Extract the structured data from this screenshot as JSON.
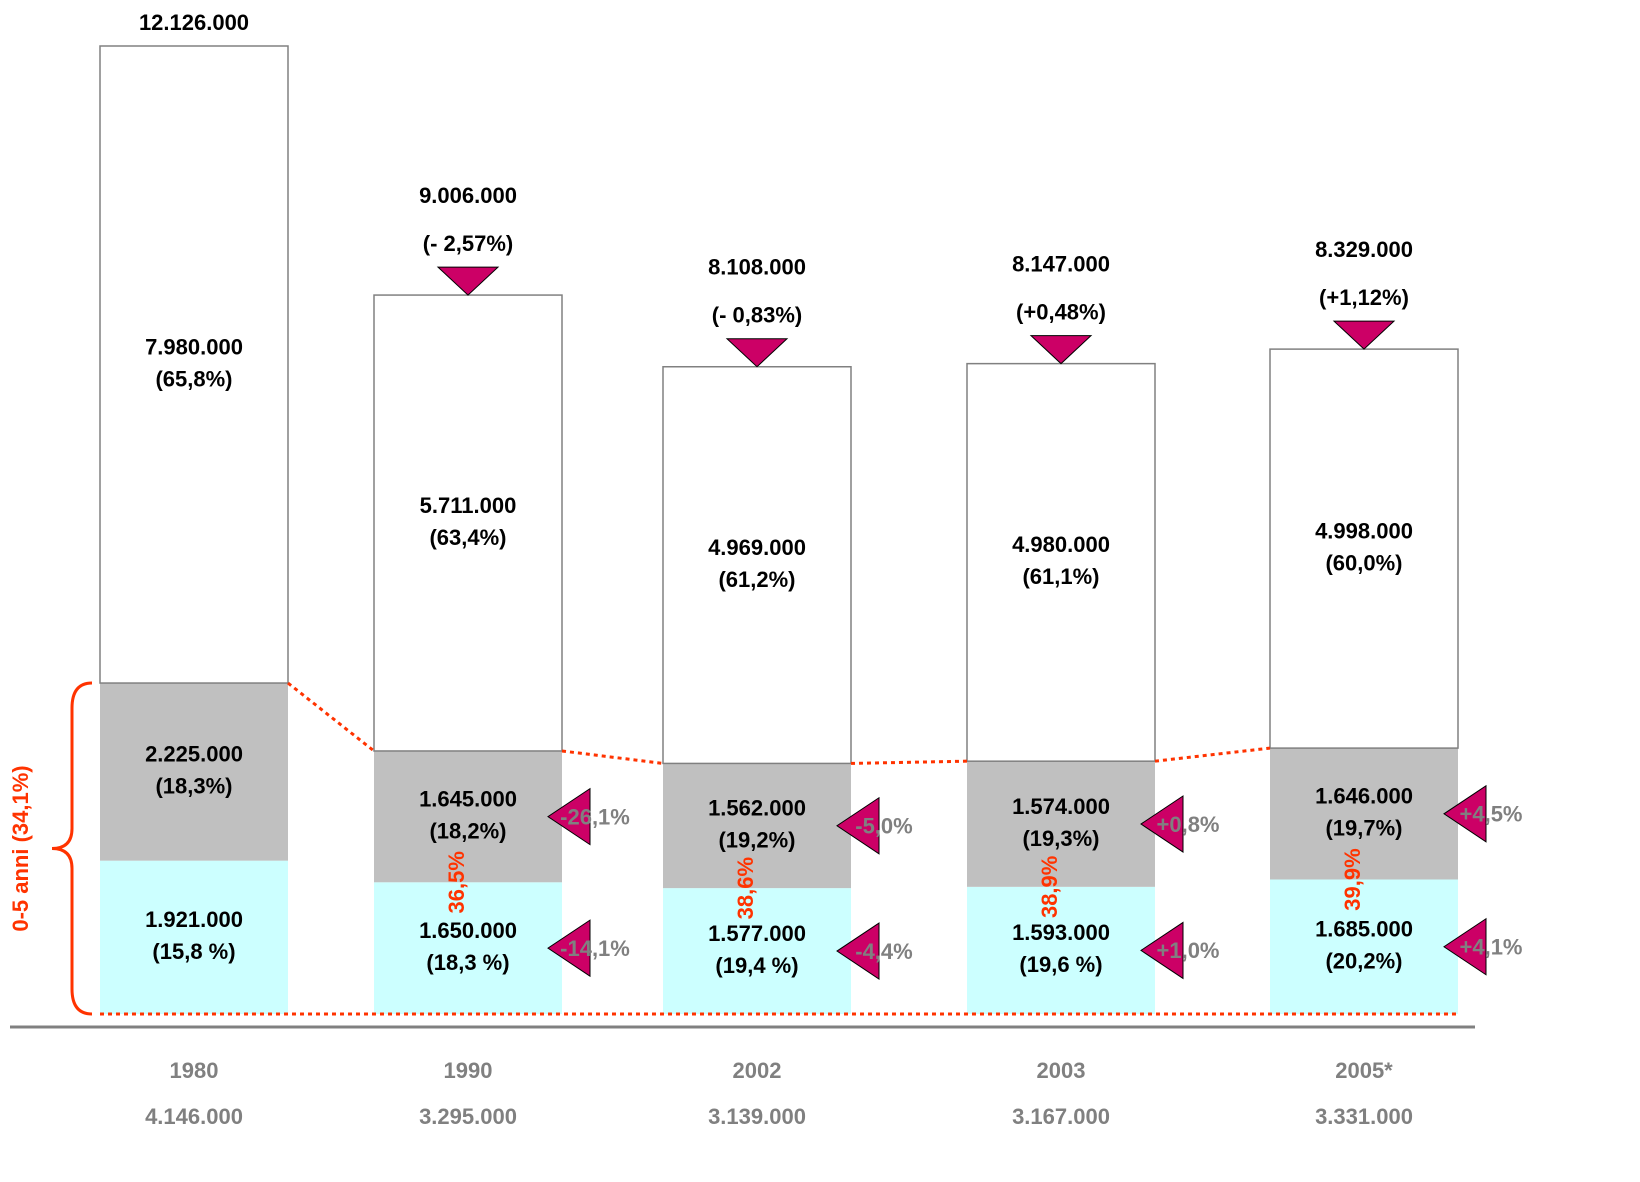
{
  "chart_data": {
    "type": "bar",
    "stacked": true,
    "categories": [
      "1980",
      "1990",
      "2002",
      "2003",
      "2005*"
    ],
    "series": [
      {
        "color": "#ccffff",
        "values": [
          1921000,
          1650000,
          1577000,
          1593000,
          1685000
        ],
        "value_labels": [
          "1.921.000",
          "1.650.000",
          "1.577.000",
          "1.593.000",
          "1.685.000"
        ],
        "shares": [
          15.8,
          18.3,
          19.4,
          19.6,
          20.2
        ],
        "share_labels": [
          "(15,8 %)",
          "(18,3 %)",
          "(19,4 %)",
          "(19,6 %)",
          "(20,2%)"
        ],
        "changes": [
          null,
          -14.1,
          -4.4,
          1.0,
          4.1
        ],
        "change_labels": [
          null,
          "-14,1%",
          "-4,4%",
          "+1,0%",
          "+4,1%"
        ]
      },
      {
        "color": "#c0c0c0",
        "values": [
          2225000,
          1645000,
          1562000,
          1574000,
          1646000
        ],
        "value_labels": [
          "2.225.000",
          "1.645.000",
          "1.562.000",
          "1.574.000",
          "1.646.000"
        ],
        "shares": [
          18.3,
          18.2,
          19.2,
          19.3,
          19.7
        ],
        "share_labels": [
          "(18,3%)",
          "(18,2%)",
          "(19,2%)",
          "(19,3%)",
          "(19,7%)"
        ],
        "changes": [
          null,
          -26.1,
          -5.0,
          0.8,
          4.5
        ],
        "change_labels": [
          null,
          "-26,1%",
          "-5,0%",
          "+0,8%",
          "+4,5%"
        ]
      },
      {
        "color": "#ffffff",
        "values": [
          7980000,
          5711000,
          4969000,
          4980000,
          4998000
        ],
        "value_labels": [
          "7.980.000",
          "5.711.000",
          "4.969.000",
          "4.980.000",
          "4.998.000"
        ],
        "shares": [
          65.8,
          63.4,
          61.2,
          61.1,
          60.0
        ],
        "share_labels": [
          "(65,8%)",
          "(63,4%)",
          "(61,2%)",
          "(61,1%)",
          "(60,0%)"
        ]
      }
    ],
    "totals": {
      "values": [
        12126000,
        9006000,
        8108000,
        8147000,
        8329000
      ],
      "value_labels": [
        "12.126.000",
        "9.006.000",
        "8.108.000",
        "8.147.000",
        "8.329.000"
      ],
      "changes": [
        null,
        -2.57,
        -0.83,
        0.48,
        1.12
      ],
      "change_labels": [
        null,
        "(- 2,57%)",
        "(- 0,83%)",
        "(+0,48%)",
        "(+1,12%)"
      ]
    },
    "subtotals": {
      "values": [
        4146000,
        3295000,
        3139000,
        3167000,
        3331000
      ],
      "value_labels": [
        "4.146.000",
        "3.295.000",
        "3.139.000",
        "3.167.000",
        "3.331.000"
      ]
    },
    "child_shares": {
      "values": [
        null,
        36.5,
        38.6,
        38.9,
        39.9
      ],
      "labels": [
        null,
        "36,5%",
        "38,6%",
        "38,9%",
        "39,9%"
      ]
    },
    "bracket_value": 34.1,
    "bracket_label": "0-5 anni (34,1%)"
  }
}
